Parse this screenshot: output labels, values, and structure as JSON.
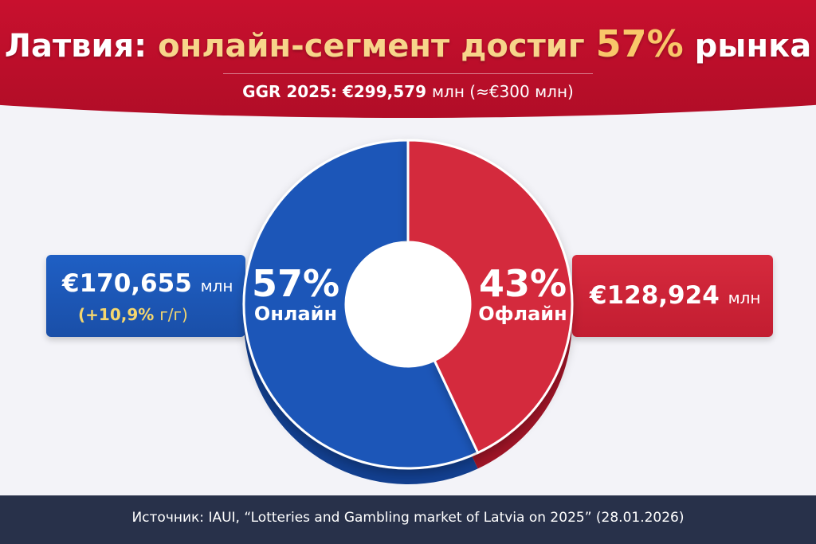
{
  "header": {
    "title_country": "Латвия:",
    "title_mid": "онлайн-сегмент достиг",
    "title_pct": "57%",
    "title_end": "рынка",
    "subtitle_label": "GGR 2025: €299,579",
    "subtitle_unit": "млн (≈€300 млн)"
  },
  "chart_data": {
    "type": "pie",
    "title": "Латвия: онлайн-сегмент достиг 57% рынка",
    "subtitle": "GGR 2025: €299,579 млн (≈€300 млн)",
    "total": 299.579,
    "categories": [
      "Онлайн",
      "Офлайн"
    ],
    "values": [
      57,
      43
    ],
    "percent_labels": [
      "57%",
      "43%"
    ],
    "amounts": [
      170.655,
      128.924
    ],
    "amount_labels": [
      "€170,655",
      "€128,924"
    ],
    "unit": "млн",
    "growth_label": "(+10,9%",
    "growth_unit": "г/г)",
    "colors": [
      "#1c57b8",
      "#d42a3c"
    ],
    "side_colors": [
      "#123f8f",
      "#9e1426"
    ]
  },
  "footer": {
    "source": "Источник: IAUI, “Lotteries and Gambling market of Latvia on 2025” (28.01.2026)"
  }
}
